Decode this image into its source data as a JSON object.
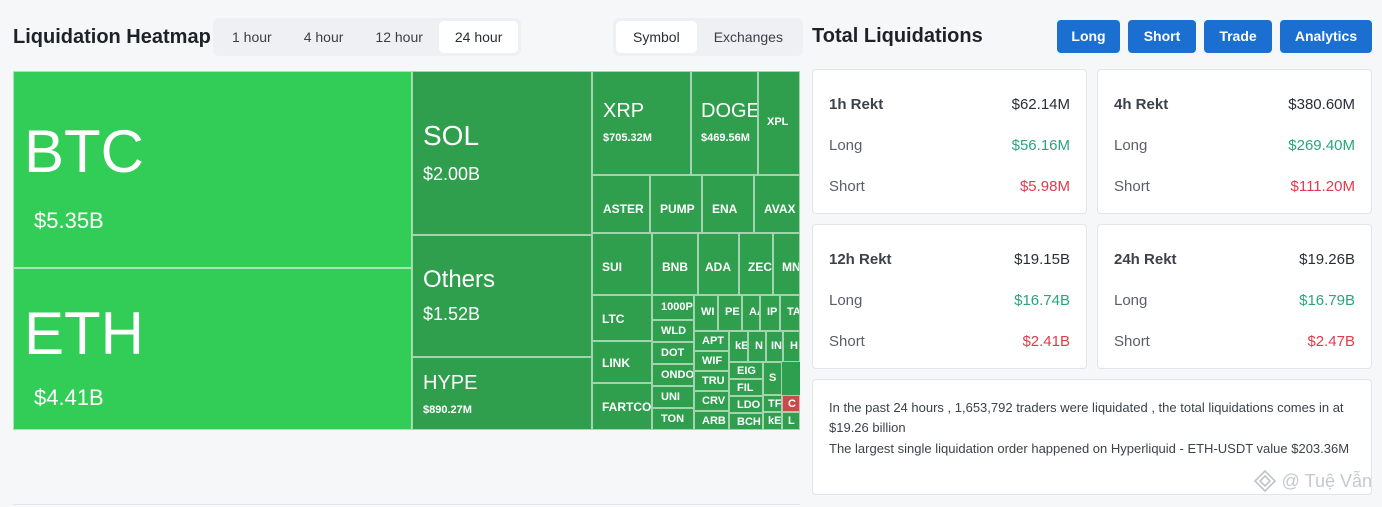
{
  "heatmap": {
    "title": "Liquidation Heatmap",
    "time_tabs": [
      "1 hour",
      "4 hour",
      "12 hour",
      "24 hour"
    ],
    "active_time_tab": "24 hour",
    "view_tabs": [
      "Symbol",
      "Exchanges"
    ],
    "active_view_tab": "Symbol",
    "colors": {
      "big": "#31cd57",
      "mid": "#2f9f4e",
      "negative": "#c84b4b"
    },
    "cells": [
      {
        "symbol": "BTC",
        "value": "$5.35B"
      },
      {
        "symbol": "ETH",
        "value": "$4.41B"
      },
      {
        "symbol": "SOL",
        "value": "$2.00B"
      },
      {
        "symbol": "Others",
        "value": "$1.52B"
      },
      {
        "symbol": "HYPE",
        "value": "$890.27M"
      },
      {
        "symbol": "XRP",
        "value": "$705.32M"
      },
      {
        "symbol": "DOGE",
        "value": "$469.56M"
      },
      {
        "symbol": "XPL",
        "value": ""
      },
      {
        "symbol": "ASTER",
        "value": ""
      },
      {
        "symbol": "PUMP",
        "value": ""
      },
      {
        "symbol": "ENA",
        "value": ""
      },
      {
        "symbol": "AVAX",
        "value": ""
      },
      {
        "symbol": "SUI",
        "value": ""
      },
      {
        "symbol": "BNB",
        "value": ""
      },
      {
        "symbol": "ADA",
        "value": ""
      },
      {
        "symbol": "ZEC",
        "value": ""
      },
      {
        "symbol": "MNT",
        "value": ""
      },
      {
        "symbol": "LTC",
        "value": ""
      },
      {
        "symbol": "1000P",
        "value": ""
      },
      {
        "symbol": "WLD",
        "value": ""
      },
      {
        "symbol": "DOT",
        "value": ""
      },
      {
        "symbol": "ONDO",
        "value": ""
      },
      {
        "symbol": "UNI",
        "value": ""
      },
      {
        "symbol": "TON",
        "value": ""
      },
      {
        "symbol": "LINK",
        "value": ""
      },
      {
        "symbol": "FARTCOIN",
        "value": ""
      },
      {
        "symbol": "WI",
        "value": ""
      },
      {
        "symbol": "PE",
        "value": ""
      },
      {
        "symbol": "AA",
        "value": ""
      },
      {
        "symbol": "IP",
        "value": ""
      },
      {
        "symbol": "TA",
        "value": ""
      },
      {
        "symbol": "APT",
        "value": ""
      },
      {
        "symbol": "WIF",
        "value": ""
      },
      {
        "symbol": "TRU",
        "value": ""
      },
      {
        "symbol": "CRV",
        "value": ""
      },
      {
        "symbol": "ARB",
        "value": ""
      },
      {
        "symbol": "kE",
        "value": ""
      },
      {
        "symbol": "N",
        "value": ""
      },
      {
        "symbol": "IN",
        "value": ""
      },
      {
        "symbol": "H",
        "value": ""
      },
      {
        "symbol": "EIG",
        "value": ""
      },
      {
        "symbol": "FIL",
        "value": ""
      },
      {
        "symbol": "LDO",
        "value": ""
      },
      {
        "symbol": "BCH",
        "value": ""
      },
      {
        "symbol": "S",
        "value": ""
      },
      {
        "symbol": "TF",
        "value": ""
      },
      {
        "symbol": "C",
        "value": ""
      },
      {
        "symbol": "kE",
        "value": ""
      },
      {
        "symbol": "L",
        "value": ""
      }
    ]
  },
  "totals": {
    "title": "Total Liquidations",
    "buttons": [
      "Long",
      "Short",
      "Trade",
      "Analytics"
    ],
    "cards": [
      {
        "label": "1h Rekt",
        "total": "$62.14M",
        "long_label": "Long",
        "long": "$56.16M",
        "short_label": "Short",
        "short": "$5.98M"
      },
      {
        "label": "4h Rekt",
        "total": "$380.60M",
        "long_label": "Long",
        "long": "$269.40M",
        "short_label": "Short",
        "short": "$111.20M"
      },
      {
        "label": "12h Rekt",
        "total": "$19.15B",
        "long_label": "Long",
        "long": "$16.74B",
        "short_label": "Short",
        "short": "$2.41B"
      },
      {
        "label": "24h Rekt",
        "total": "$19.26B",
        "long_label": "Long",
        "long": "$16.79B",
        "short_label": "Short",
        "short": "$2.47B"
      }
    ],
    "summary_line1": "In the past 24 hours , 1,653,792 traders were liquidated , the total liquidations comes in at $19.26 billion",
    "summary_line2": "The largest single liquidation order happened on Hyperliquid - ETH-USDT value $203.36M",
    "colors": {
      "long": "#2aa47e",
      "short": "#e03a4b",
      "button": "#1a6fd1"
    }
  },
  "watermark": "@ Tuệ Vẫn"
}
